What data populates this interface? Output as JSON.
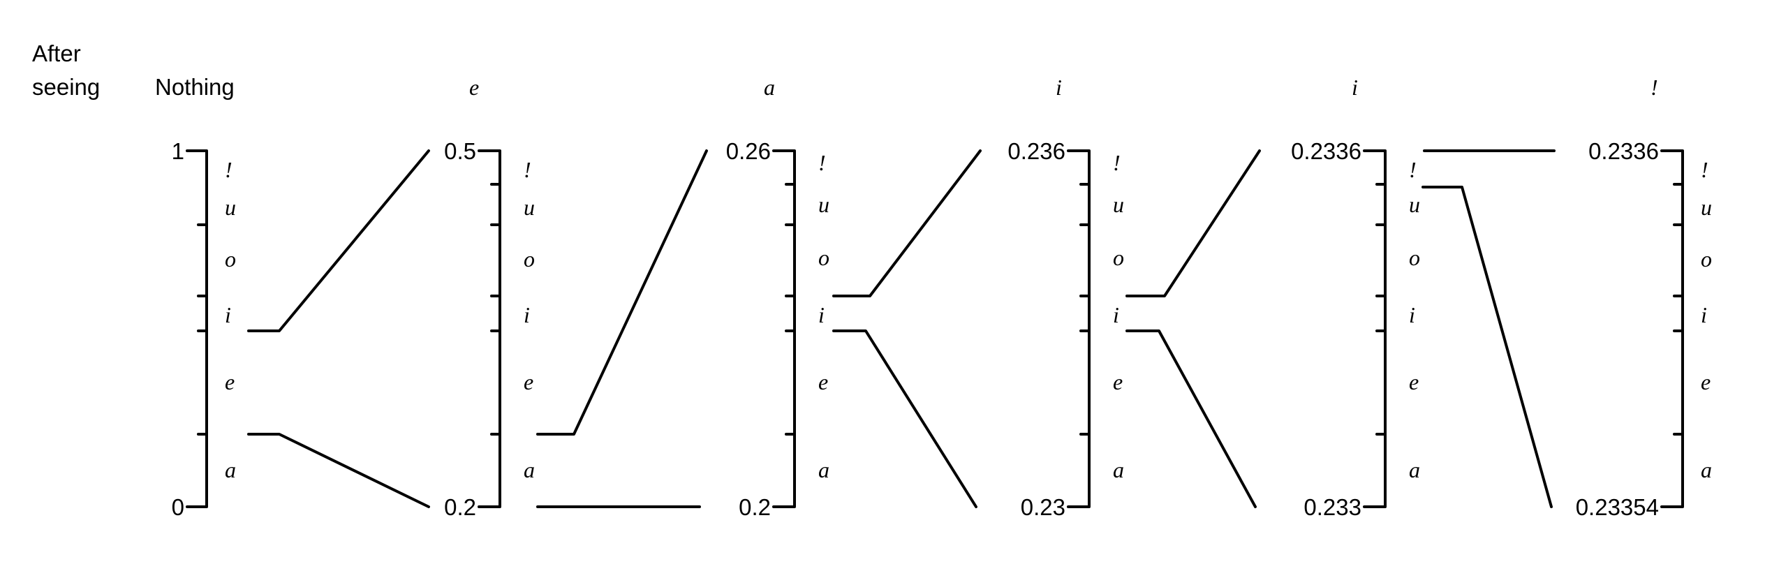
{
  "header": {
    "label_line1": "After",
    "label_line2": "seeing"
  },
  "steps": [
    "Nothing",
    "e",
    "a",
    "i",
    "i",
    "!"
  ],
  "symbols_top_to_bottom": [
    "!",
    "u",
    "o",
    "i",
    "e",
    "a"
  ],
  "scales": [
    {
      "top": "1",
      "bottom": "0"
    },
    {
      "top": "0.5",
      "bottom": "0.2"
    },
    {
      "top": "0.26",
      "bottom": "0.2"
    },
    {
      "top": "0.236",
      "bottom": "0.23"
    },
    {
      "top": "0.2336",
      "bottom": "0.233"
    },
    {
      "top": "0.2336",
      "bottom": "0.23354"
    }
  ],
  "colors": {
    "ink": "#000000",
    "background": "#ffffff"
  }
}
